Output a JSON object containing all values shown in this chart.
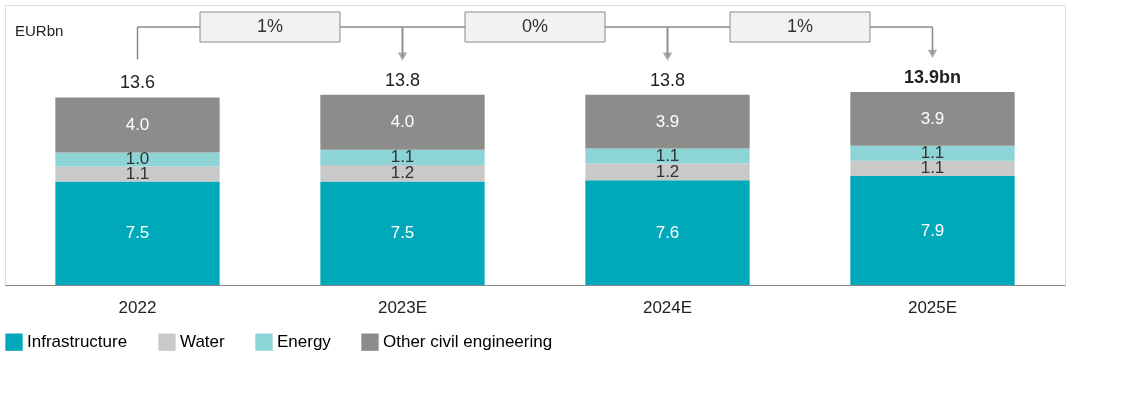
{
  "chart_data": {
    "type": "bar",
    "stacked": true,
    "ylabel": "EURbn",
    "categories": [
      "2022",
      "2023E",
      "2024E",
      "2025E"
    ],
    "series": [
      {
        "name": "Infrastructure",
        "color": "#00a9b9",
        "values": [
          7.5,
          7.5,
          7.6,
          7.9
        ],
        "value_labels": [
          "7.5",
          "7.5",
          "7.6",
          "7.9"
        ]
      },
      {
        "name": "Water",
        "color": "#c9c9c9",
        "values": [
          1.1,
          1.2,
          1.2,
          1.1
        ],
        "value_labels": [
          "1.1",
          "1.2",
          "1.2",
          "1.1"
        ]
      },
      {
        "name": "Energy",
        "color": "#8dd4d6",
        "values": [
          1.0,
          1.1,
          1.1,
          1.1
        ],
        "value_labels": [
          "1.0",
          "1.1",
          "1.1",
          "1.1"
        ]
      },
      {
        "name": "Other civil engineering",
        "color": "#8c8c8a",
        "values": [
          4.0,
          4.0,
          3.9,
          3.9
        ],
        "value_labels": [
          "4.0",
          "4.0",
          "3.9",
          "3.9"
        ]
      }
    ],
    "totals": [
      "13.6",
      "13.8",
      "13.8",
      "13.9bn"
    ],
    "annotations": [
      "1%",
      "0%",
      "1%"
    ],
    "tick_labels": "x",
    "grid": false,
    "legend": "bottom"
  }
}
